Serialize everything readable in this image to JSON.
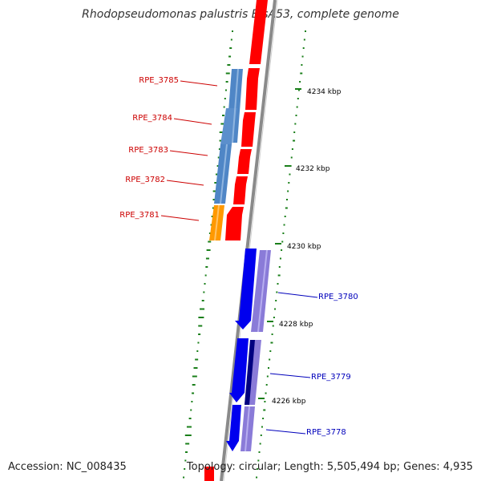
{
  "title": "Rhodopseudomonas palustris BisA53, complete genome",
  "footer": {
    "accession": "Accession: NC_008435",
    "topology": "Topology: circular; Length: 5,505,494 bp; Genes: 4,935"
  },
  "colors": {
    "backbone": "#888888",
    "forward_gene": "#ff0000",
    "forward_orf": "#4f86c6",
    "forward_orf_alt": "#ff9900",
    "reverse_gene": "#0000ee",
    "reverse_orf": "#8a7bd8",
    "reverse_orf_dark": "#000080",
    "gc_dots": "#1a7f1a",
    "forward_label": "#cc0000",
    "reverse_label": "#0000bb"
  },
  "ticks": [
    {
      "label": "4234 kbp",
      "position_kbp": 4234
    },
    {
      "label": "4232 kbp",
      "position_kbp": 4232
    },
    {
      "label": "4230 kbp",
      "position_kbp": 4230
    },
    {
      "label": "4228 kbp",
      "position_kbp": 4228
    },
    {
      "label": "4226 kbp",
      "position_kbp": 4226
    }
  ],
  "genes_forward": [
    {
      "label": "RPE_3785"
    },
    {
      "label": "RPE_3784"
    },
    {
      "label": "RPE_3783"
    },
    {
      "label": "RPE_3782"
    },
    {
      "label": "RPE_3781"
    }
  ],
  "genes_reverse": [
    {
      "label": "RPE_3780"
    },
    {
      "label": "RPE_3779"
    },
    {
      "label": "RPE_3778"
    }
  ]
}
